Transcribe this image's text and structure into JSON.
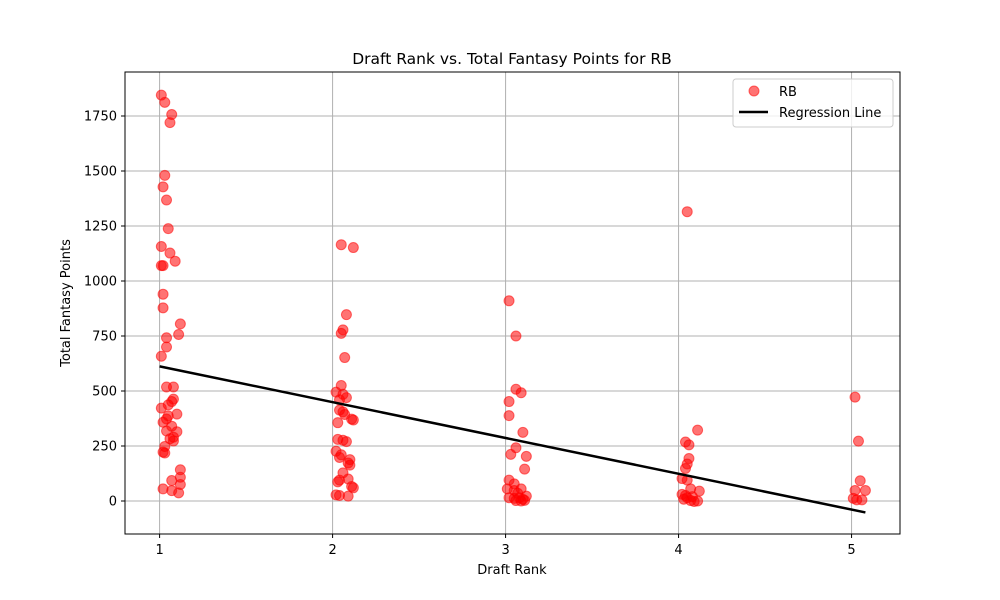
{
  "chart_data": {
    "type": "scatter",
    "title": "Draft Rank vs. Total Fantasy Points for RB",
    "xlabel": "Draft Rank",
    "ylabel": "Total Fantasy Points",
    "xlim": [
      0.8,
      5.28
    ],
    "ylim": [
      -150,
      1950
    ],
    "xticks": [
      1,
      2,
      3,
      4,
      5
    ],
    "yticks": [
      0,
      250,
      500,
      750,
      1000,
      1250,
      1500,
      1750
    ],
    "grid": true,
    "legend_position": "top-right",
    "legend": [
      "RB",
      "Regression Line"
    ],
    "colors": {
      "scatter": "#ff0000",
      "scatter_alpha": 0.55,
      "regression": "#000000",
      "grid": "#b0b0b0"
    },
    "series": [
      {
        "name": "RB",
        "type": "scatter",
        "points": [
          [
            1.01,
            1845
          ],
          [
            1.03,
            1812
          ],
          [
            1.07,
            1757
          ],
          [
            1.06,
            1720
          ],
          [
            1.03,
            1480
          ],
          [
            1.02,
            1428
          ],
          [
            1.04,
            1368
          ],
          [
            1.05,
            1238
          ],
          [
            1.01,
            1157
          ],
          [
            1.06,
            1127
          ],
          [
            1.09,
            1090
          ],
          [
            1.01,
            1070
          ],
          [
            1.02,
            1070
          ],
          [
            1.02,
            940
          ],
          [
            1.02,
            878
          ],
          [
            1.12,
            805
          ],
          [
            1.11,
            757
          ],
          [
            1.04,
            742
          ],
          [
            1.04,
            700
          ],
          [
            1.01,
            658
          ],
          [
            1.04,
            518
          ],
          [
            1.08,
            518
          ],
          [
            1.08,
            463
          ],
          [
            1.07,
            452
          ],
          [
            1.05,
            437
          ],
          [
            1.01,
            422
          ],
          [
            1.1,
            395
          ],
          [
            1.05,
            387
          ],
          [
            1.04,
            373
          ],
          [
            1.02,
            358
          ],
          [
            1.07,
            340
          ],
          [
            1.1,
            315
          ],
          [
            1.04,
            318
          ],
          [
            1.06,
            283
          ],
          [
            1.08,
            290
          ],
          [
            1.08,
            273
          ],
          [
            1.03,
            248
          ],
          [
            1.02,
            222
          ],
          [
            1.03,
            218
          ],
          [
            1.12,
            142
          ],
          [
            1.12,
            108
          ],
          [
            1.07,
            93
          ],
          [
            1.12,
            75
          ],
          [
            1.02,
            55
          ],
          [
            1.07,
            47
          ],
          [
            1.11,
            37
          ],
          [
            2.05,
            1165
          ],
          [
            2.12,
            1152
          ],
          [
            2.08,
            847
          ],
          [
            2.06,
            778
          ],
          [
            2.05,
            762
          ],
          [
            2.07,
            652
          ],
          [
            2.05,
            525
          ],
          [
            2.02,
            495
          ],
          [
            2.06,
            485
          ],
          [
            2.08,
            470
          ],
          [
            2.04,
            460
          ],
          [
            2.04,
            413
          ],
          [
            2.06,
            405
          ],
          [
            2.07,
            393
          ],
          [
            2.11,
            372
          ],
          [
            2.12,
            368
          ],
          [
            2.03,
            356
          ],
          [
            2.03,
            280
          ],
          [
            2.06,
            276
          ],
          [
            2.08,
            270
          ],
          [
            2.02,
            226
          ],
          [
            2.05,
            210
          ],
          [
            2.04,
            198
          ],
          [
            2.1,
            188
          ],
          [
            2.09,
            173
          ],
          [
            2.1,
            163
          ],
          [
            2.06,
            128
          ],
          [
            2.09,
            100
          ],
          [
            2.04,
            95
          ],
          [
            2.03,
            87
          ],
          [
            2.11,
            66
          ],
          [
            2.12,
            60
          ],
          [
            2.02,
            28
          ],
          [
            2.04,
            25
          ],
          [
            2.09,
            22
          ],
          [
            3.02,
            910
          ],
          [
            3.06,
            750
          ],
          [
            3.06,
            508
          ],
          [
            3.09,
            492
          ],
          [
            3.02,
            452
          ],
          [
            3.02,
            388
          ],
          [
            3.1,
            312
          ],
          [
            3.06,
            242
          ],
          [
            3.03,
            212
          ],
          [
            3.12,
            203
          ],
          [
            3.11,
            145
          ],
          [
            3.02,
            95
          ],
          [
            3.05,
            78
          ],
          [
            3.01,
            55
          ],
          [
            3.05,
            48
          ],
          [
            3.09,
            55
          ],
          [
            3.07,
            35
          ],
          [
            3.12,
            22
          ],
          [
            3.02,
            15
          ],
          [
            3.05,
            12
          ],
          [
            3.08,
            15
          ],
          [
            3.1,
            8
          ],
          [
            3.06,
            2
          ],
          [
            3.09,
            0
          ],
          [
            3.11,
            3
          ],
          [
            4.05,
            1315
          ],
          [
            4.11,
            322
          ],
          [
            4.04,
            268
          ],
          [
            4.06,
            255
          ],
          [
            4.06,
            193
          ],
          [
            4.05,
            168
          ],
          [
            4.04,
            148
          ],
          [
            4.02,
            102
          ],
          [
            4.05,
            95
          ],
          [
            4.07,
            55
          ],
          [
            4.12,
            45
          ],
          [
            4.02,
            30
          ],
          [
            4.04,
            25
          ],
          [
            4.08,
            20
          ],
          [
            4.05,
            15
          ],
          [
            4.03,
            8
          ],
          [
            4.07,
            2
          ],
          [
            4.09,
            -2
          ],
          [
            4.11,
            0
          ],
          [
            5.02,
            472
          ],
          [
            5.04,
            272
          ],
          [
            5.05,
            92
          ],
          [
            5.02,
            48
          ],
          [
            5.08,
            48
          ],
          [
            5.01,
            12
          ],
          [
            5.03,
            5
          ],
          [
            5.06,
            5
          ]
        ]
      },
      {
        "name": "Regression Line",
        "type": "line",
        "x": [
          1.0,
          5.08
        ],
        "y": [
          612,
          -52
        ]
      }
    ]
  }
}
